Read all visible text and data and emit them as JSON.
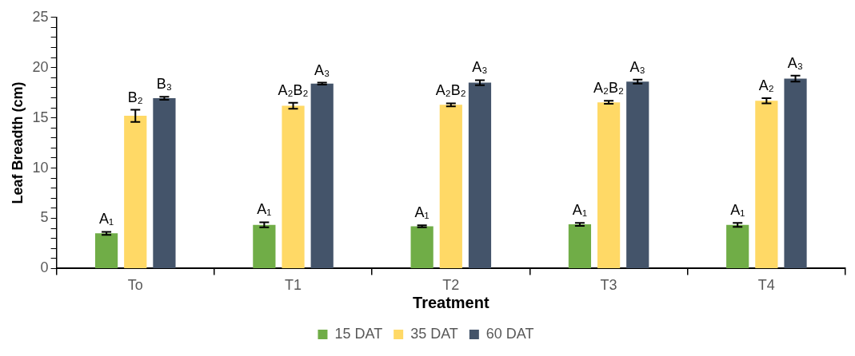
{
  "chart_data": {
    "type": "bar",
    "xlabel": "Treatment",
    "ylabel": "Leaf Breadth (cm)",
    "categories": [
      "To",
      "T1",
      "T2",
      "T3",
      "T4"
    ],
    "series": [
      {
        "name": "15 DAT",
        "color": "#70ad47",
        "values": [
          3.5,
          4.35,
          4.2,
          4.4,
          4.35
        ],
        "errors": [
          0.15,
          0.25,
          0.1,
          0.15,
          0.2
        ],
        "value_labels": [
          "A₁",
          "A₁",
          "A₁",
          "A₁",
          "A₁"
        ]
      },
      {
        "name": "35 DAT",
        "color": "#ffd966",
        "values": [
          15.2,
          16.2,
          16.3,
          16.55,
          16.7
        ],
        "errors": [
          0.6,
          0.3,
          0.15,
          0.15,
          0.25
        ],
        "value_labels": [
          "B₂",
          "A₂B₂",
          "A₂B₂",
          "A₂B₂",
          "A₂"
        ]
      },
      {
        "name": "60 DAT",
        "color": "#44546a",
        "values": [
          16.95,
          18.4,
          18.5,
          18.6,
          18.9
        ],
        "errors": [
          0.15,
          0.1,
          0.25,
          0.2,
          0.3
        ],
        "value_labels": [
          "B₃",
          "A₃",
          "A₃",
          "A₃",
          "A₃"
        ]
      }
    ],
    "ylim": [
      0,
      25
    ],
    "yticks": [
      0,
      {
        "value": 1,
        "label": null
      },
      {
        "value": 2,
        "label": null
      },
      {
        "value": 3,
        "label": null
      },
      {
        "value": 4,
        "label": null
      },
      5,
      {
        "value": 6,
        "label": null
      },
      {
        "value": 7,
        "label": null
      },
      {
        "value": 8,
        "label": null
      },
      {
        "value": 9,
        "label": null
      },
      10,
      {
        "value": 11,
        "label": null
      },
      {
        "value": 12,
        "label": null
      },
      {
        "value": 13,
        "label": null
      },
      {
        "value": 14,
        "label": null
      },
      15,
      {
        "value": 16,
        "label": null
      },
      {
        "value": 17,
        "label": null
      },
      {
        "value": 18,
        "label": null
      },
      {
        "value": 19,
        "label": null
      },
      20,
      {
        "value": 21,
        "label": null
      },
      {
        "value": 22,
        "label": null
      },
      {
        "value": 23,
        "label": null
      },
      {
        "value": 24,
        "label": null
      },
      25
    ],
    "grid": false,
    "legend": "bottom"
  }
}
